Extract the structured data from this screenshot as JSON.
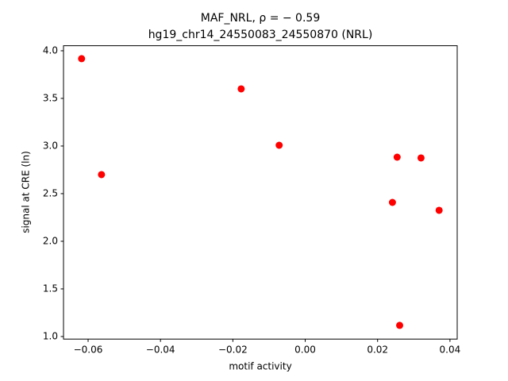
{
  "chart_data": {
    "type": "scatter",
    "title": "MAF_NRL, ρ = − 0.59",
    "subtitle": "hg19_chr14_24550083_24550870 (NRL)",
    "x_label": "motif activity",
    "y_label": "signal at CRE (ln)",
    "color": "#ff0000",
    "x": [
      -0.0618,
      -0.0563,
      -0.0177,
      -0.0072,
      0.0254,
      0.032,
      0.0241,
      0.037,
      0.0261
    ],
    "values": [
      3.917,
      2.7,
      3.6,
      3.008,
      2.883,
      2.875,
      2.408,
      2.325,
      1.117
    ],
    "xlim": [
      -0.0668,
      0.042
    ],
    "ylim": [
      0.973,
      4.053
    ],
    "xticks": [
      {
        "value": -0.06,
        "label": "−0.06"
      },
      {
        "value": -0.04,
        "label": "−0.04"
      },
      {
        "value": -0.02,
        "label": "−0.02"
      },
      {
        "value": 0,
        "label": "0.00"
      },
      {
        "value": 0.02,
        "label": "0.02"
      },
      {
        "value": 0.04,
        "label": "0.04"
      }
    ],
    "yticks": [
      {
        "value": 1,
        "label": "1.0"
      },
      {
        "value": 1.5,
        "label": "1.5"
      },
      {
        "value": 2,
        "label": "2.0"
      },
      {
        "value": 2.5,
        "label": "2.5"
      },
      {
        "value": 3,
        "label": "3.0"
      },
      {
        "value": 3.5,
        "label": "3.5"
      },
      {
        "value": 4,
        "label": "4.0"
      }
    ]
  }
}
